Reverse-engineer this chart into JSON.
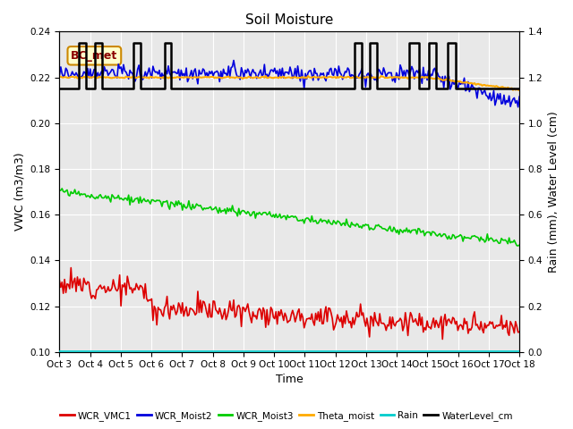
{
  "title": "Soil Moisture",
  "xlabel": "Time",
  "ylabel_left": "VWC (m3/m3)",
  "ylabel_right": "Rain (mm), Water Level (cm)",
  "annotation_label": "BC_met",
  "ylim_left": [
    0.1,
    0.24
  ],
  "ylim_right": [
    0.0,
    1.4
  ],
  "yticks_left": [
    0.1,
    0.12,
    0.14,
    0.16,
    0.18,
    0.2,
    0.22,
    0.24
  ],
  "yticks_right": [
    0.0,
    0.2,
    0.4,
    0.6,
    0.8,
    1.0,
    1.2,
    1.4
  ],
  "xtick_labels": [
    "Oct 3",
    "Oct 4",
    "Oct 5",
    "Oct 6",
    "Oct 7",
    "Oct 8",
    "Oct 9",
    "Oct 10",
    "Oct 11",
    "Oct 12",
    "Oct 13",
    "Oct 14",
    "Oct 15",
    "Oct 16",
    "Oct 17",
    "Oct 18"
  ],
  "colors": {
    "WCR_VMC1": "#dd0000",
    "WCR_Moist2": "#0000dd",
    "WCR_Moist3": "#00cc00",
    "Theta_moist": "#ffaa00",
    "Rain": "#00cccc",
    "WaterLevel_cm": "#000000"
  },
  "linewidths": {
    "WCR_VMC1": 1.2,
    "WCR_Moist2": 1.2,
    "WCR_Moist3": 1.2,
    "Theta_moist": 1.5,
    "Rain": 1.2,
    "WaterLevel_cm": 1.8
  },
  "fig_bg": "#ffffff",
  "axes_bg": "#e8e8e8",
  "num_points": 360
}
